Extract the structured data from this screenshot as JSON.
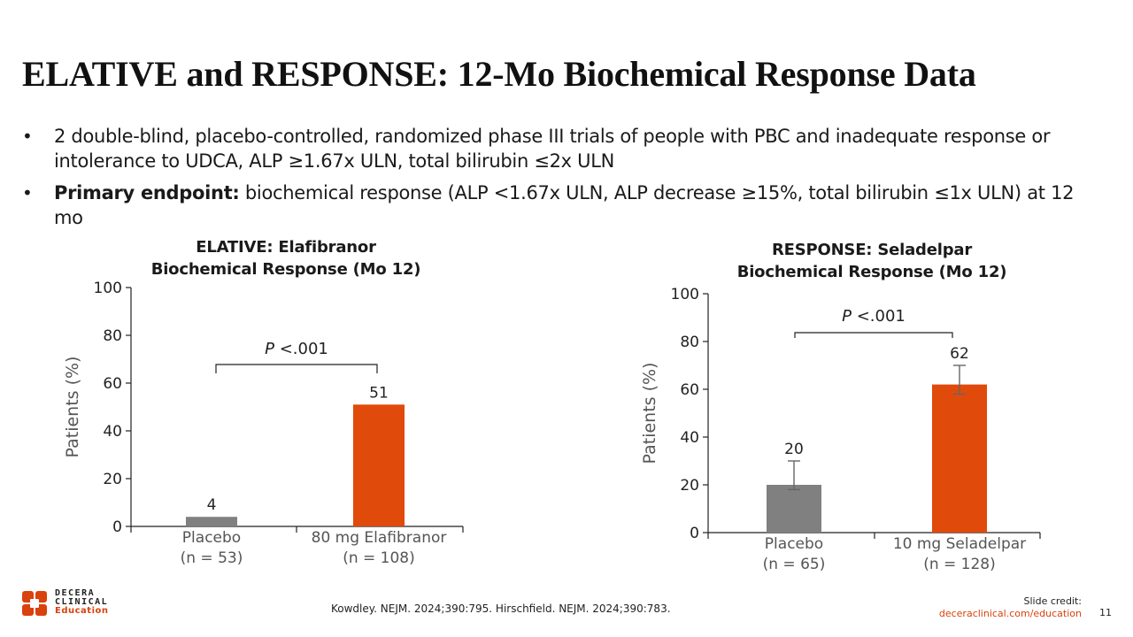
{
  "slide": {
    "title": "ELATIVE and RESPONSE: 12-Mo Biochemical Response Data",
    "bullets": [
      {
        "bold": "",
        "text": "2 double-blind, placebo-controlled, randomized phase III trials of people with PBC and inadequate response or intolerance to UDCA, ALP ≥1.67x ULN, total bilirubin ≤2x ULN"
      },
      {
        "bold": "Primary endpoint:",
        "text": " biochemical response (ALP <1.67x ULN, ALP decrease ≥15%, total bilirubin ≤1x ULN) at 12 mo"
      }
    ],
    "source": "Kowdley. NEJM. 2024;390:795. Hirschfield. NEJM. 2024;390:783.",
    "credit_label": "Slide credit:",
    "credit_url": "deceraclinical.com/education",
    "page_number": "11",
    "logo": {
      "line1": "DECERA",
      "line2": "CLINICAL",
      "line3": "Education"
    },
    "colors": {
      "placebo": "#808080",
      "treatment": "#e04a0b",
      "brand": "#d9410d"
    }
  },
  "chart_data": [
    {
      "type": "bar",
      "title_line1": "ELATIVE: Elafibranor",
      "title_line2": "Biochemical Response (Mo 12)",
      "ylabel": "Patients (%)",
      "ylim": [
        0,
        100
      ],
      "yticks": [
        "0",
        "20",
        "40",
        "60",
        "80",
        "100"
      ],
      "categories": [
        {
          "name": "Placebo",
          "n": "(n = 53)"
        },
        {
          "name": "80 mg Elafibranor",
          "n": "(n = 108)"
        }
      ],
      "values": [
        4,
        51
      ],
      "value_labels": [
        "4",
        "51"
      ],
      "error_bars": null,
      "p_value": {
        "italic": "P",
        "text": " <.001"
      }
    },
    {
      "type": "bar",
      "title_line1": "RESPONSE: Seladelpar",
      "title_line2": "Biochemical Response (Mo 12)",
      "ylabel": "Patients (%)",
      "ylim": [
        0,
        100
      ],
      "yticks": [
        "0",
        "20",
        "40",
        "60",
        "80",
        "100"
      ],
      "categories": [
        {
          "name": "Placebo",
          "n": "(n = 65)"
        },
        {
          "name": "10 mg Seladelpar",
          "n": "(n = 128)"
        }
      ],
      "values": [
        20,
        62
      ],
      "value_labels": [
        "20",
        "62"
      ],
      "error_bars": [
        [
          18,
          30
        ],
        [
          58,
          70
        ]
      ],
      "p_value": {
        "italic": "P",
        "text": " <.001"
      }
    }
  ]
}
